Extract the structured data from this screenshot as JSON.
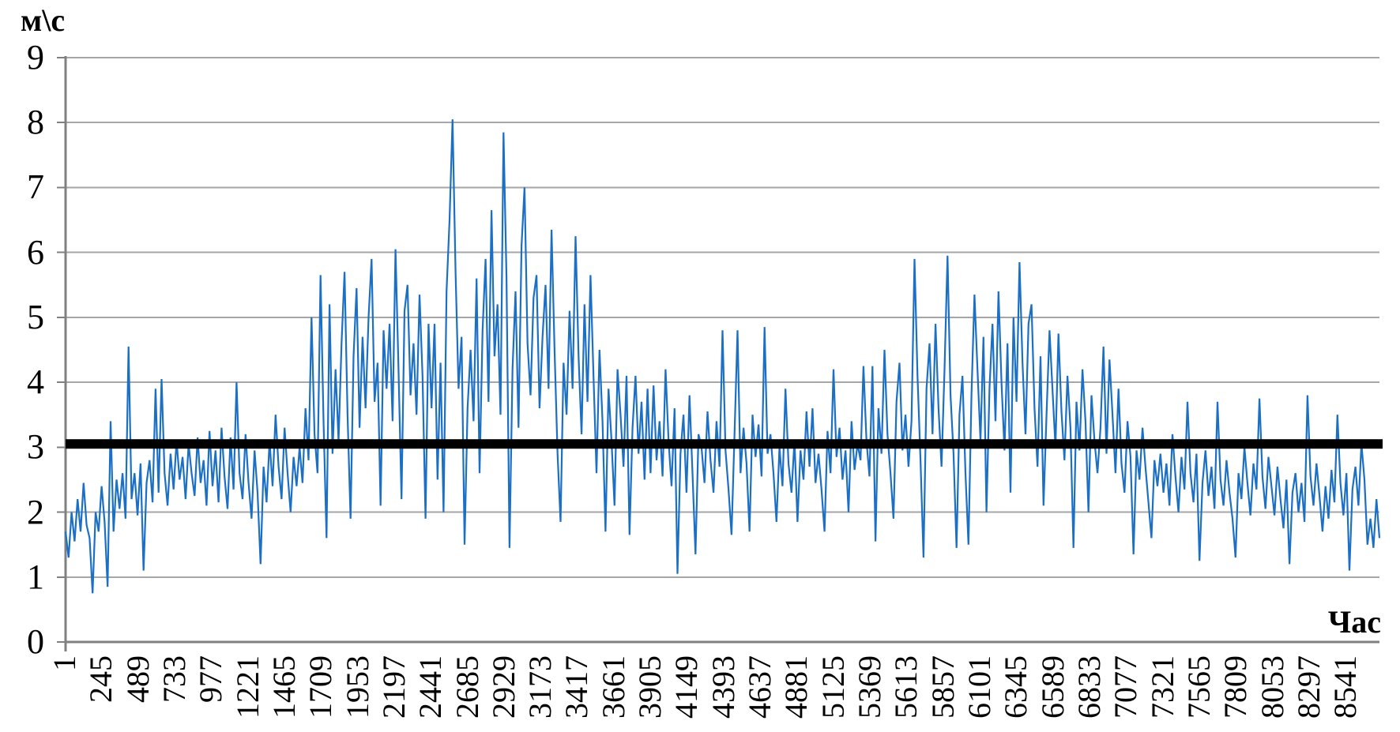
{
  "chart_data": {
    "type": "line",
    "title": "",
    "ylabel": "м\\с",
    "xlabel": "Час",
    "ylim": [
      0,
      9
    ],
    "xlim": [
      1,
      8760
    ],
    "grid": true,
    "legend": "none",
    "yticks": [
      0,
      1,
      2,
      3,
      4,
      5,
      6,
      7,
      8,
      9
    ],
    "xticks": [
      1,
      245,
      489,
      733,
      977,
      1221,
      1465,
      1709,
      1953,
      2197,
      2441,
      2685,
      2929,
      3173,
      3417,
      3661,
      3905,
      4149,
      4393,
      4637,
      4881,
      5125,
      5369,
      5613,
      5857,
      6101,
      6345,
      6589,
      6833,
      7077,
      7321,
      7565,
      7809,
      8053,
      8297,
      8541
    ],
    "colors": {
      "series": "#1B6FC4",
      "reference_line": "#000000",
      "grid": "#A6A6A6",
      "axis": "#808080",
      "text": "#000000"
    },
    "reference_line": {
      "value": 3.05
    },
    "series": [
      {
        "start_hour": 1,
        "step_hours": 20,
        "values": [
          1.7,
          1.3,
          2.0,
          1.55,
          2.2,
          1.7,
          2.45,
          1.8,
          1.6,
          0.75,
          2.0,
          1.7,
          2.4,
          1.85,
          0.85,
          3.4,
          1.7,
          2.5,
          2.05,
          2.6,
          1.9,
          4.55,
          2.2,
          2.6,
          1.95,
          2.75,
          1.1,
          2.45,
          2.8,
          2.15,
          3.9,
          2.3,
          4.05,
          2.6,
          2.1,
          2.9,
          2.35,
          3.1,
          2.5,
          2.85,
          2.2,
          3.05,
          2.6,
          2.25,
          3.15,
          2.45,
          2.8,
          2.1,
          3.25,
          2.4,
          2.95,
          2.15,
          3.3,
          2.55,
          2.05,
          3.15,
          2.35,
          4.0,
          2.6,
          2.2,
          3.2,
          2.45,
          1.9,
          2.95,
          2.3,
          1.2,
          2.7,
          2.15,
          3.1,
          2.4,
          3.5,
          2.7,
          2.2,
          3.3,
          2.6,
          2.0,
          2.85,
          2.4,
          3.0,
          2.45,
          3.6,
          2.8,
          5.0,
          3.2,
          2.6,
          5.65,
          3.4,
          1.6,
          5.2,
          2.9,
          4.2,
          3.1,
          4.6,
          5.7,
          3.5,
          1.9,
          4.4,
          5.45,
          3.3,
          4.7,
          3.6,
          5.0,
          5.9,
          3.7,
          4.3,
          2.1,
          4.8,
          3.9,
          4.9,
          3.4,
          6.05,
          4.2,
          2.2,
          5.1,
          5.5,
          3.8,
          4.6,
          3.5,
          5.35,
          4.1,
          1.9,
          4.9,
          3.6,
          4.9,
          2.5,
          4.3,
          2.0,
          5.4,
          6.5,
          8.05,
          5.7,
          3.9,
          4.7,
          1.5,
          3.6,
          4.5,
          3.4,
          5.6,
          2.6,
          4.8,
          5.9,
          3.7,
          6.65,
          4.4,
          5.2,
          3.5,
          7.85,
          5.6,
          1.45,
          4.2,
          5.4,
          3.3,
          6.1,
          7.0,
          4.6,
          3.8,
          5.3,
          5.65,
          3.6,
          4.7,
          5.5,
          3.9,
          6.35,
          4.5,
          2.9,
          1.85,
          4.3,
          3.5,
          5.1,
          3.9,
          6.25,
          4.4,
          3.2,
          5.2,
          3.7,
          5.65,
          4.1,
          2.6,
          4.5,
          3.4,
          1.7,
          3.9,
          3.1,
          2.1,
          4.2,
          3.5,
          2.7,
          4.1,
          1.65,
          3.3,
          4.1,
          2.9,
          3.7,
          2.5,
          3.9,
          2.6,
          3.95,
          2.8,
          3.4,
          2.55,
          4.2,
          3.1,
          2.4,
          3.6,
          1.05,
          2.9,
          3.5,
          2.3,
          3.8,
          2.6,
          1.35,
          3.2,
          3.0,
          2.45,
          3.55,
          2.8,
          2.3,
          3.4,
          2.7,
          4.8,
          2.95,
          2.35,
          1.65,
          3.2,
          4.8,
          2.6,
          3.3,
          2.75,
          1.7,
          3.5,
          2.85,
          3.35,
          2.55,
          4.85,
          2.9,
          3.2,
          2.6,
          1.85,
          3.0,
          2.4,
          3.9,
          2.75,
          2.3,
          3.1,
          1.85,
          2.95,
          2.5,
          3.55,
          2.7,
          3.6,
          2.45,
          2.9,
          2.35,
          1.7,
          3.25,
          2.6,
          4.2,
          2.85,
          3.3,
          2.5,
          2.95,
          2.0,
          3.4,
          2.65,
          3.05,
          2.8,
          4.25,
          3.1,
          2.55,
          4.25,
          1.55,
          3.6,
          2.9,
          4.5,
          3.2,
          2.6,
          1.9,
          3.7,
          4.3,
          2.95,
          3.5,
          2.7,
          3.4,
          5.9,
          4.1,
          2.8,
          1.3,
          3.9,
          4.6,
          3.2,
          4.9,
          3.6,
          2.7,
          4.2,
          5.95,
          3.8,
          2.9,
          1.45,
          3.5,
          4.1,
          2.6,
          1.5,
          3.8,
          5.35,
          4.2,
          3.1,
          4.7,
          2.0,
          3.9,
          4.9,
          3.4,
          5.4,
          4.0,
          2.95,
          4.6,
          2.3,
          5.0,
          3.7,
          5.85,
          4.3,
          3.2,
          4.9,
          5.2,
          3.6,
          2.7,
          4.4,
          2.1,
          3.5,
          4.8,
          3.9,
          3.0,
          4.75,
          3.55,
          2.8,
          4.1,
          3.3,
          1.45,
          3.7,
          2.95,
          4.2,
          3.4,
          2.0,
          3.8,
          3.1,
          2.6,
          3.3,
          4.55,
          2.9,
          4.35,
          3.5,
          2.6,
          3.9,
          2.75,
          2.3,
          3.4,
          2.85,
          1.35,
          2.95,
          2.5,
          3.3,
          2.7,
          2.15,
          1.6,
          2.8,
          2.4,
          2.9,
          2.3,
          2.75,
          2.1,
          3.2,
          2.55,
          2.0,
          2.85,
          2.35,
          3.7,
          2.6,
          2.15,
          2.9,
          1.25,
          2.45,
          2.95,
          2.25,
          2.7,
          2.05,
          3.7,
          2.5,
          2.1,
          2.8,
          2.3,
          1.9,
          1.3,
          2.6,
          2.2,
          3.0,
          2.45,
          1.95,
          2.75,
          2.35,
          3.75,
          2.55,
          2.05,
          2.85,
          2.4,
          1.95,
          2.7,
          2.2,
          1.75,
          2.5,
          1.2,
          2.3,
          2.6,
          2.0,
          2.45,
          1.85,
          3.8,
          2.55,
          2.1,
          2.75,
          2.25,
          1.7,
          2.4,
          1.9,
          2.65,
          2.15,
          3.5,
          2.45,
          1.95,
          2.6,
          1.1,
          2.35,
          2.7,
          2.1,
          3.05,
          2.5,
          1.5,
          1.9,
          1.45,
          2.2,
          1.6
        ]
      }
    ]
  }
}
